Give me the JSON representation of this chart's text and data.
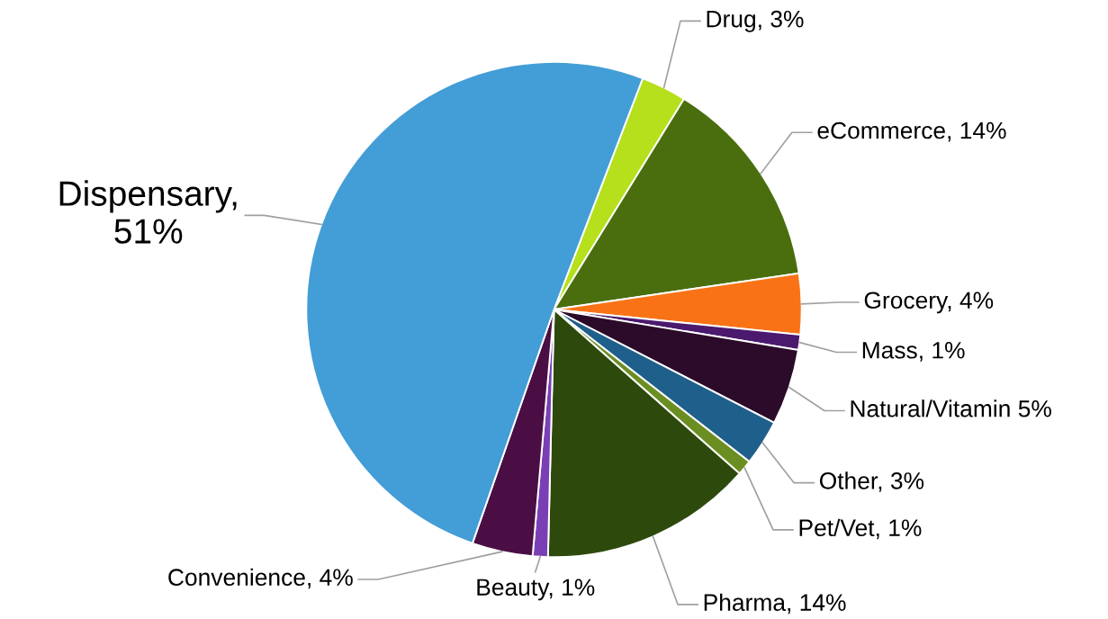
{
  "chart_data": {
    "type": "pie",
    "categories": [
      "Drug, 3%",
      "eCommerce, 14%",
      "Grocery, 4%",
      "Mass, 1%",
      "Natural/Vitamin 5%",
      "Other, 3%",
      "Pet/Vet, 1%",
      "Pharma, 14%",
      "Beauty, 1%",
      "Convenience, 4%",
      "Dispensary,\n51%"
    ],
    "values": [
      3,
      14,
      4,
      1,
      5,
      3,
      1,
      14,
      1,
      4,
      51
    ],
    "colors": [
      "#b5e01b",
      "#4a6e0e",
      "#f97316",
      "#4b1a6e",
      "#2c0a2a",
      "#1f5f8b",
      "#6b8e23",
      "#2d4a0c",
      "#7b3fb5",
      "#4a0e45",
      "#439dd6"
    ],
    "legend": false
  }
}
